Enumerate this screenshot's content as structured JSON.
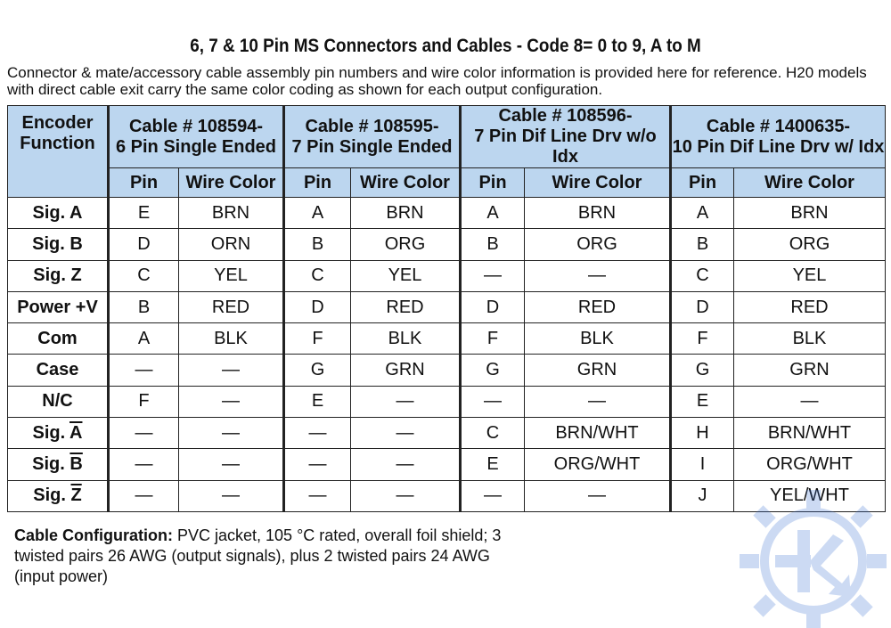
{
  "title": "6, 7 & 10 Pin MS Connectors and Cables - Code 8= 0 to 9, A to M",
  "intro": "Connector & mate/accessory cable assembly pin numbers and wire color information is provided here for reference. H20 models with direct cable exit carry the same color coding as shown for each output configuration.",
  "table": {
    "func_header": [
      "Encoder",
      "Function"
    ],
    "cables": [
      {
        "line1": "Cable # 108594-",
        "line2": "6 Pin Single Ended"
      },
      {
        "line1": "Cable # 108595-",
        "line2": "7 Pin Single Ended"
      },
      {
        "line1": "Cable # 108596-",
        "line2": "7 Pin Dif Line Drv w/o Idx"
      },
      {
        "line1": "Cable # 1400635-",
        "line2": "10 Pin Dif Line Drv w/ Idx"
      }
    ],
    "sub_pin": "Pin",
    "sub_wire": "Wire Color",
    "rows": [
      {
        "prefix": "Sig. ",
        "sig": "A",
        "inverted": false,
        "cells": [
          "E",
          "BRN",
          "A",
          "BRN",
          "A",
          "BRN",
          "A",
          "BRN"
        ]
      },
      {
        "prefix": "Sig. ",
        "sig": "B",
        "inverted": false,
        "cells": [
          "D",
          "ORN",
          "B",
          "ORG",
          "B",
          "ORG",
          "B",
          "ORG"
        ]
      },
      {
        "prefix": "Sig. ",
        "sig": "Z",
        "inverted": false,
        "cells": [
          "C",
          "YEL",
          "C",
          "YEL",
          "—",
          "—",
          "C",
          "YEL"
        ]
      },
      {
        "prefix": "Power +V",
        "sig": "",
        "inverted": false,
        "cells": [
          "B",
          "RED",
          "D",
          "RED",
          "D",
          "RED",
          "D",
          "RED"
        ]
      },
      {
        "prefix": "Com",
        "sig": "",
        "inverted": false,
        "cells": [
          "A",
          "BLK",
          "F",
          "BLK",
          "F",
          "BLK",
          "F",
          "BLK"
        ]
      },
      {
        "prefix": "Case",
        "sig": "",
        "inverted": false,
        "cells": [
          "—",
          "—",
          "G",
          "GRN",
          "G",
          "GRN",
          "G",
          "GRN"
        ]
      },
      {
        "prefix": "N/C",
        "sig": "",
        "inverted": false,
        "cells": [
          "F",
          "—",
          "E",
          "—",
          "—",
          "—",
          "E",
          "—"
        ]
      },
      {
        "prefix": "Sig. ",
        "sig": "A",
        "inverted": true,
        "cells": [
          "—",
          "—",
          "—",
          "—",
          "C",
          "BRN/WHT",
          "H",
          "BRN/WHT"
        ]
      },
      {
        "prefix": "Sig. ",
        "sig": "B",
        "inverted": true,
        "cells": [
          "—",
          "—",
          "—",
          "—",
          "E",
          "ORG/WHT",
          "I",
          "ORG/WHT"
        ]
      },
      {
        "prefix": "Sig. ",
        "sig": "Z",
        "inverted": true,
        "cells": [
          "—",
          "—",
          "—",
          "—",
          "—",
          "—",
          "J",
          "YEL/WHT"
        ]
      }
    ]
  },
  "config": {
    "label": "Cable Configuration:",
    "text": " PVC jacket, 105 °C rated, overall foil shield; 3 twisted pairs 26 AWG (output signals), plus 2 twisted pairs 24 AWG (input power)"
  },
  "colors": {
    "header_bg": "#bcd6ef",
    "watermark": "#3a6fd0"
  },
  "watermark_icon": "gear-k-logo-icon"
}
